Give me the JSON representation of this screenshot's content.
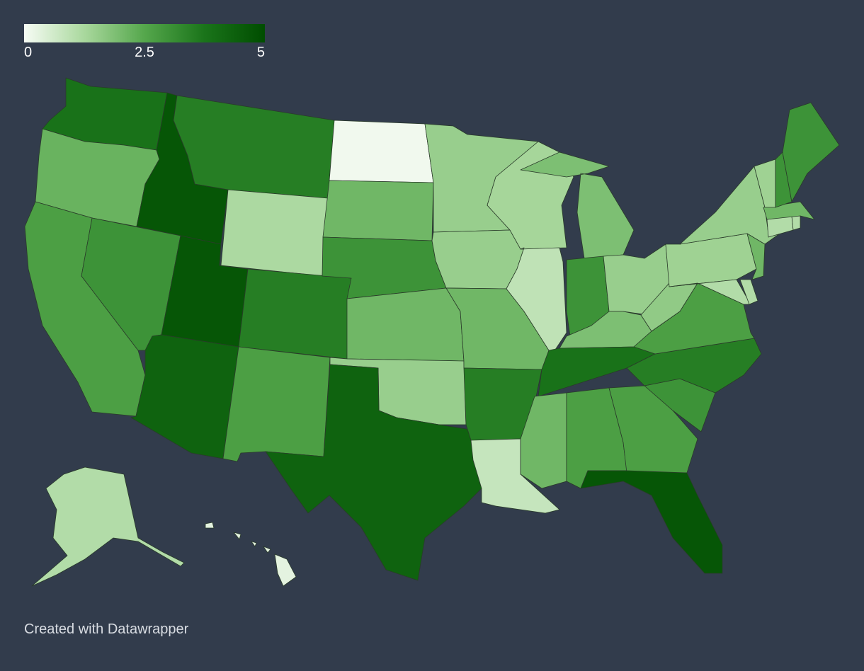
{
  "chart_data": {
    "type": "choropleth",
    "domain": [
      0,
      5
    ],
    "ticks": [
      0,
      2.5,
      5
    ],
    "colors": [
      "#f7fcf5",
      "#a9d89d",
      "#55a74c",
      "#1a741a",
      "#004d00"
    ],
    "values": [
      3.8,
      2.2,
      2.7,
      4.7,
      3,
      3.5,
      1.2,
      4.7,
      4.3,
      3.5,
      2.7,
      0.1,
      2.1,
      3,
      2.1,
      1.5,
      4.3,
      1.5,
      1.5,
      2.1,
      3.5,
      0.8,
      1.3,
      0.9,
      1.9,
      3,
      1.5,
      1.9,
      3.8,
      2.1,
      2.7,
      2.7,
      4.7,
      3,
      3.5,
      2.7,
      1.6,
      1.4,
      1.5,
      1.1,
      1.1,
      2.1,
      1.1,
      1.1,
      2.1,
      1.4,
      3,
      3,
      1.1,
      0.3
    ]
  },
  "footer": "Created with Datawrapper"
}
